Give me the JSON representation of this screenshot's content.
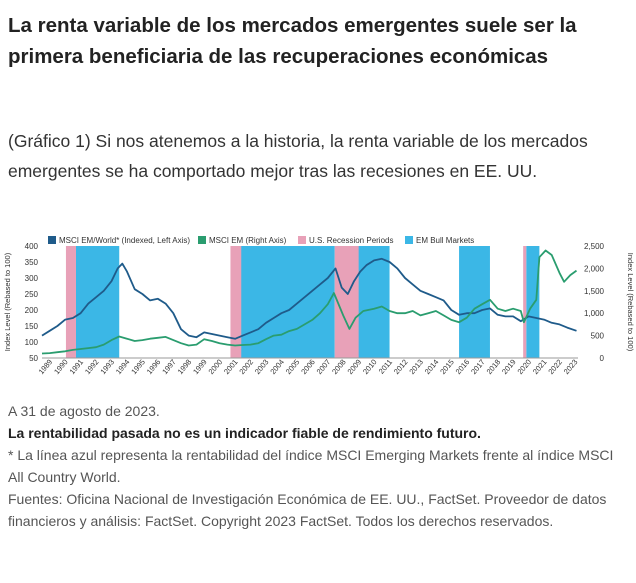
{
  "page": {
    "title": "La renta variable de los mercados emergentes suele ser la primera beneficiaria de las recuperaciones económicas",
    "subtitle": "(Gráfico 1) Si nos atenemos a la historia, la renta variable de los mercados emergentes se ha comportado mejor tras las recesiones en EE. UU.",
    "notes": {
      "date": "A 31 de agosto de 2023.",
      "disclaimer": "La rentabilidad pasada no es un indicador fiable de rendimiento futuro.",
      "footnote": "* La línea azul representa la rentabilidad del índice MSCI Emerging Markets frente al índice MSCI All Country World.",
      "sources": "Fuentes: Oficina Nacional de Investigación Económica de EE. UU., FactSet. Proveedor de datos financieros y análisis: FactSet. Copyright 2023 FactSet. Todos los derechos reservados."
    }
  },
  "chart_data": {
    "type": "line",
    "title": "",
    "legend_position": "top",
    "legend": [
      {
        "name": "MSCI EM/World* (Indexed, Left Axis)",
        "color": "#1f5b8a",
        "kind": "line"
      },
      {
        "name": "MSCI EM (Right Axis)",
        "color": "#2a9d6f",
        "kind": "line"
      },
      {
        "name": "U.S. Recession Periods",
        "color": "#e8a1b8",
        "kind": "box"
      },
      {
        "name": "EM Bull Markets",
        "color": "#3bb7e6",
        "kind": "box"
      }
    ],
    "xlim": [
      1989,
      2023.7
    ],
    "x_ticks": [
      "1989",
      "1990",
      "1991",
      "1992",
      "1993",
      "1994",
      "1995",
      "1996",
      "1997",
      "1998",
      "1999",
      "2000",
      "2001",
      "2002",
      "2003",
      "2004",
      "2005",
      "2006",
      "2007",
      "2008",
      "2009",
      "2010",
      "2011",
      "2012",
      "2013",
      "2014",
      "2015",
      "2016",
      "2017",
      "2018",
      "2019",
      "2020",
      "2021",
      "2022",
      "2023"
    ],
    "y_left": {
      "label": "Index Level (Rebased to 100)",
      "ticks": [
        50,
        100,
        150,
        200,
        250,
        300,
        350,
        400
      ],
      "range": [
        50,
        400
      ]
    },
    "y_right": {
      "label": "Index Level (Rebased to 100)",
      "ticks": [
        "0",
        "500",
        "1,000",
        "1,500",
        "2,000",
        "2,500"
      ],
      "range": [
        0,
        2500
      ]
    },
    "recessions": [
      [
        1990.55,
        1991.2
      ],
      [
        2001.2,
        2001.9
      ],
      [
        2007.95,
        2009.5
      ],
      [
        2020.15,
        2020.35
      ]
    ],
    "bull_markets": [
      [
        1991.2,
        1994.0
      ],
      [
        2001.7,
        2007.95
      ],
      [
        2009.0,
        2011.5
      ],
      [
        2016.0,
        2018.0
      ],
      [
        2020.35,
        2021.2
      ]
    ],
    "series": [
      {
        "name": "MSCI EM/World* (Indexed, Left Axis)",
        "axis": "left",
        "x": [
          1989.0,
          1989.5,
          1990.0,
          1990.5,
          1991.0,
          1991.5,
          1992.0,
          1992.5,
          1993.0,
          1993.5,
          1993.9,
          1994.2,
          1994.5,
          1995.0,
          1995.5,
          1996.0,
          1996.5,
          1997.0,
          1997.5,
          1998.0,
          1998.5,
          1999.0,
          1999.5,
          2000.0,
          2000.5,
          2001.0,
          2001.5,
          2002.0,
          2002.5,
          2003.0,
          2003.5,
          2004.0,
          2004.5,
          2005.0,
          2005.5,
          2006.0,
          2006.5,
          2007.0,
          2007.5,
          2008.0,
          2008.4,
          2008.8,
          2009.2,
          2009.6,
          2010.0,
          2010.5,
          2011.0,
          2011.5,
          2012.0,
          2012.5,
          2013.0,
          2013.5,
          2014.0,
          2014.5,
          2015.0,
          2015.5,
          2016.0,
          2016.5,
          2017.0,
          2017.5,
          2018.0,
          2018.5,
          2019.0,
          2019.5,
          2020.0,
          2020.5,
          2021.0,
          2021.5,
          2022.0,
          2022.5,
          2023.0,
          2023.6
        ],
        "values": [
          120,
          135,
          150,
          170,
          175,
          190,
          220,
          240,
          260,
          290,
          330,
          345,
          320,
          265,
          250,
          230,
          235,
          220,
          190,
          140,
          120,
          115,
          130,
          125,
          120,
          115,
          110,
          120,
          130,
          140,
          160,
          175,
          190,
          200,
          220,
          240,
          260,
          280,
          300,
          330,
          270,
          250,
          290,
          320,
          340,
          355,
          360,
          350,
          330,
          300,
          280,
          260,
          250,
          240,
          230,
          200,
          185,
          190,
          190,
          200,
          205,
          185,
          180,
          180,
          165,
          180,
          175,
          170,
          160,
          155,
          145,
          135
        ]
      },
      {
        "name": "MSCI EM (Right Axis)",
        "axis": "right",
        "x": [
          1989.0,
          1989.5,
          1990.0,
          1990.5,
          1991.0,
          1991.5,
          1992.0,
          1992.5,
          1993.0,
          1993.5,
          1994.0,
          1994.5,
          1995.0,
          1995.5,
          1996.0,
          1996.5,
          1997.0,
          1997.5,
          1998.0,
          1998.5,
          1999.0,
          1999.5,
          2000.0,
          2000.5,
          2001.0,
          2001.5,
          2002.0,
          2002.5,
          2003.0,
          2003.5,
          2004.0,
          2004.5,
          2005.0,
          2005.5,
          2006.0,
          2006.5,
          2007.0,
          2007.5,
          2007.9,
          2008.5,
          2008.9,
          2009.3,
          2009.8,
          2010.5,
          2011.0,
          2011.5,
          2012.0,
          2012.5,
          2013.0,
          2013.5,
          2014.0,
          2014.5,
          2015.0,
          2015.5,
          2016.0,
          2016.5,
          2017.0,
          2017.5,
          2018.0,
          2018.5,
          2019.0,
          2019.5,
          2020.0,
          2020.2,
          2020.6,
          2021.0,
          2021.2,
          2021.6,
          2022.0,
          2022.5,
          2022.8,
          2023.2,
          2023.6
        ],
        "values": [
          100,
          110,
          130,
          150,
          180,
          200,
          220,
          240,
          300,
          400,
          480,
          430,
          380,
          400,
          430,
          450,
          470,
          400,
          330,
          280,
          300,
          420,
          380,
          330,
          300,
          280,
          290,
          300,
          330,
          420,
          500,
          520,
          600,
          650,
          750,
          850,
          1000,
          1200,
          1450,
          950,
          650,
          900,
          1050,
          1100,
          1150,
          1050,
          1000,
          1000,
          1050,
          950,
          1000,
          1050,
          950,
          850,
          800,
          900,
          1100,
          1200,
          1300,
          1100,
          1050,
          1100,
          1050,
          800,
          1100,
          1300,
          2250,
          2400,
          2300,
          1900,
          1700,
          1850,
          1950
        ]
      }
    ]
  }
}
